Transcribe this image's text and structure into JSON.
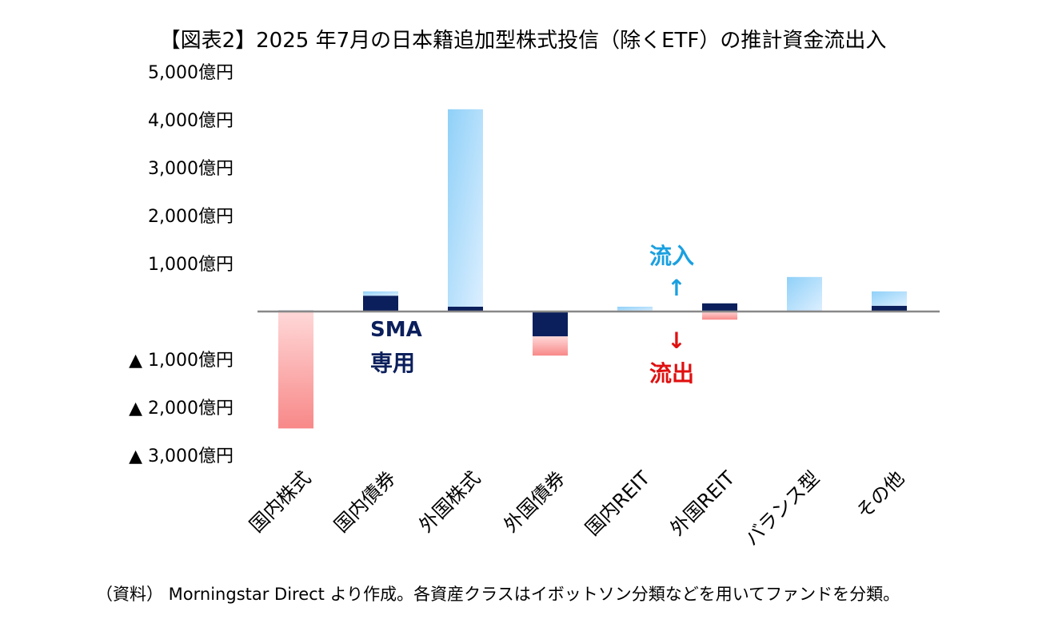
{
  "chart_data": {
    "type": "bar",
    "stacked": true,
    "title": "【図表2】2025 年7月の日本籍追加型株式投信（除くETF）の推計資金流出入",
    "categories": [
      "国内株式",
      "国内債券",
      "外国株式",
      "外国債券",
      "国内REIT",
      "外国REIT",
      "バランス型",
      "その他"
    ],
    "series": [
      {
        "key": "sma",
        "name": "SMA専用",
        "values": [
          20,
          330,
          100,
          -520,
          0,
          170,
          20,
          120
        ]
      },
      {
        "key": "other",
        "values": [
          -2440,
          90,
          4120,
          -400,
          100,
          -170,
          700,
          300
        ]
      }
    ],
    "ylim": [
      -3000,
      5000
    ],
    "yticks": [
      {
        "value": 5000,
        "label": "5,000億円"
      },
      {
        "value": 4000,
        "label": "4,000億円"
      },
      {
        "value": 3000,
        "label": "3,000億円"
      },
      {
        "value": 2000,
        "label": "2,000億円"
      },
      {
        "value": 1000,
        "label": "1,000億円"
      },
      {
        "value": -1000,
        "label": "▲ 1,000億円"
      },
      {
        "value": -2000,
        "label": "▲ 2,000億円"
      },
      {
        "value": -3000,
        "label": "▲ 3,000億円"
      }
    ],
    "grid": false,
    "annotations": {
      "sma_line1": "SMA",
      "sma_line2": "専用",
      "inflow": "流入",
      "inflow_arrow": "↑",
      "outflow_arrow": "↓",
      "outflow": "流出"
    },
    "colors": {
      "sma": "#0b1f5c",
      "inflow": "#a8d8f8",
      "outflow": "#f8a0a0",
      "inflow_text": "#1aa0e0",
      "outflow_text": "#e01010",
      "axis": "#888888"
    }
  },
  "footnote": "（資料） Morningstar Direct より作成。各資産クラスはイボットソン分類などを用いてファンドを分類。"
}
